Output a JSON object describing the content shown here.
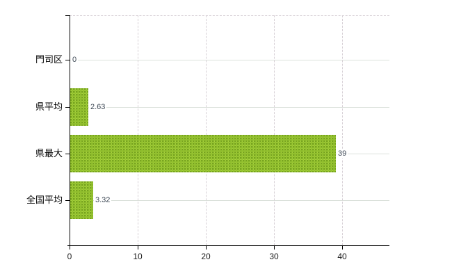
{
  "chart_data": {
    "type": "bar",
    "orientation": "horizontal",
    "title": "",
    "xlabel": "",
    "ylabel": "",
    "categories": [
      "門司区",
      "県平均",
      "県最大",
      "全国平均"
    ],
    "values": [
      0,
      2.63,
      39,
      3.32
    ],
    "value_labels": [
      "0",
      "2.63",
      "39",
      "3.32"
    ],
    "x_ticks": [
      0,
      10,
      20,
      30,
      40
    ],
    "x_tick_labels": [
      "0",
      "10",
      "20",
      "30",
      "40"
    ],
    "xlim": [
      0,
      47
    ],
    "grid": {
      "vertical_gridlines": "dashed",
      "row_lines": "solid",
      "top_border": "dashed",
      "legend": "none"
    }
  },
  "colors": {
    "bar_base": "#a9d13f",
    "bar_dot": "#76a41e",
    "bar_dot2": "#94c32f",
    "axis": "#000000",
    "gridline_dashed": "#d7d0d6",
    "row_line": "#dbe1db",
    "value_label": "#3f4a56",
    "tick_label": "#1a1a1a",
    "category_label": "#000000",
    "background": "#ffffff"
  }
}
